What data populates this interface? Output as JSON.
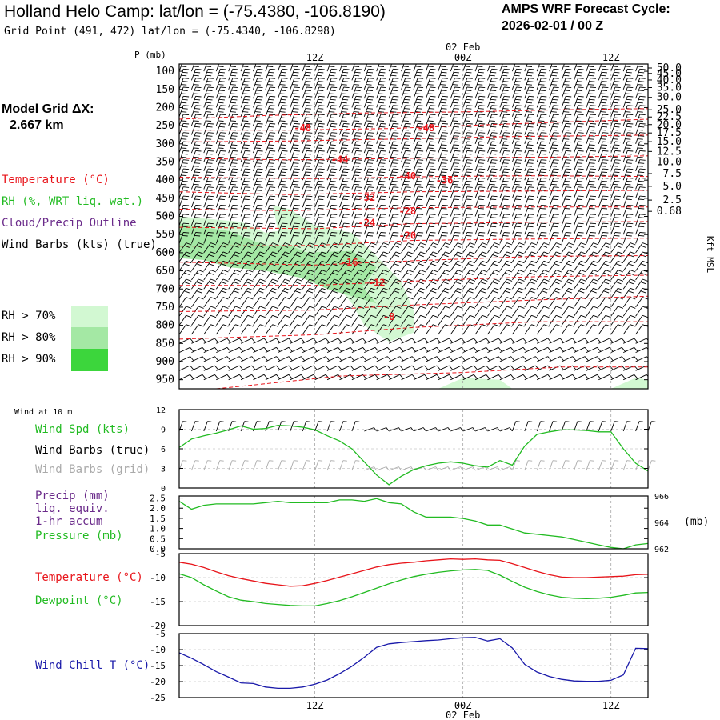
{
  "header": {
    "title": "Holland Helo Camp:  lat/lon = (-75.4380, -106.8190)",
    "subtitle": "Grid Point (491, 472) lat/lon = (-75.4340, -106.8298)",
    "cycle_line1": "AMPS WRF Forecast Cycle:",
    "cycle_line2": "2026-02-01 / 00  Z"
  },
  "model_grid": {
    "line1": "Model Grid ΔX:",
    "line2": "2.667 km"
  },
  "legend": {
    "temperature": "Temperature (°C)",
    "rh": "RH (%, WRT liq. wat.)",
    "cloud": "Cloud/Precip Outline",
    "wind": "Wind Barbs (kts) (true)",
    "rh70": "RH > 70%",
    "rh80": "RH > 80%",
    "rh90": "RH > 90%"
  },
  "colors": {
    "temperature": "#e8141a",
    "green": "#22bb22",
    "purple": "#6a2a8a",
    "blue": "#1a1aaa",
    "rh70": "#d2f8d2",
    "rh80": "#a4e8a4",
    "rh90": "#3cd63c",
    "gray": "#aaaaaa"
  },
  "chart_data": [
    {
      "type": "heatmap",
      "name": "sounding",
      "y_axis_title": "P (mb)",
      "pressure_ticks": [
        100,
        150,
        200,
        250,
        300,
        350,
        400,
        450,
        500,
        550,
        600,
        650,
        700,
        750,
        800,
        850,
        900,
        950
      ],
      "right_axis_title": "Kft MSL",
      "height_ticks": [
        "50.0",
        "45.0",
        "40.0",
        "35.0",
        "30.0",
        "25.0",
        "22.5",
        "20.0",
        "17.5",
        "15.0",
        "12.5",
        "10.0",
        "7.5",
        "5.0",
        "2.5",
        "0.68"
      ],
      "height_tick_pressures": [
        91,
        106,
        124,
        145,
        172,
        206,
        226,
        247,
        270,
        294,
        321,
        350,
        382,
        417,
        455,
        486
      ],
      "time_top_labels": [
        {
          "label": "12Z",
          "hour": 12
        },
        {
          "label": "00Z",
          "hour": 24,
          "date": "02 Feb"
        },
        {
          "label": "12Z",
          "hour": 36
        }
      ],
      "time_range_hours": [
        1,
        39
      ],
      "pressure_range": [
        80,
        975
      ],
      "temperature_labels": [
        {
          "value": "-48",
          "hour": 11.0,
          "p": 257
        },
        {
          "value": "-48",
          "hour": 21.0,
          "p": 257
        },
        {
          "value": "-44",
          "hour": 14.0,
          "p": 345
        },
        {
          "value": "-40",
          "hour": 19.5,
          "p": 390
        },
        {
          "value": "-36",
          "hour": 22.5,
          "p": 402
        },
        {
          "value": "-32",
          "hour": 16.2,
          "p": 449
        },
        {
          "value": "-28",
          "hour": 19.5,
          "p": 487
        },
        {
          "value": "-24",
          "hour": 16.2,
          "p": 519
        },
        {
          "value": "-20",
          "hour": 19.5,
          "p": 554
        },
        {
          "value": "-16",
          "hour": 14.8,
          "p": 628
        },
        {
          "value": "-12",
          "hour": 17.0,
          "p": 684
        },
        {
          "value": "-8",
          "hour": 18.0,
          "p": 778
        }
      ],
      "temperature_isotherms": [
        [
          [
            1,
            232
          ],
          [
            8,
            222
          ],
          [
            16,
            215
          ],
          [
            24,
            212
          ],
          [
            32,
            206
          ],
          [
            39,
            203
          ]
        ],
        [
          [
            1,
            262
          ],
          [
            10,
            262
          ],
          [
            18,
            258
          ],
          [
            24,
            250
          ],
          [
            32,
            240
          ],
          [
            39,
            232
          ]
        ],
        [
          [
            1,
            295
          ],
          [
            10,
            292
          ],
          [
            20,
            286
          ],
          [
            28,
            280
          ],
          [
            39,
            276
          ]
        ],
        [
          [
            1,
            340
          ],
          [
            10,
            344
          ],
          [
            20,
            340
          ],
          [
            30,
            337
          ],
          [
            39,
            333
          ]
        ],
        [
          [
            1,
            392
          ],
          [
            12,
            396
          ],
          [
            22,
            390
          ],
          [
            30,
            388
          ],
          [
            39,
            390
          ]
        ],
        [
          [
            1,
            432
          ],
          [
            10,
            440
          ],
          [
            20,
            432
          ],
          [
            30,
            430
          ],
          [
            39,
            428
          ]
        ],
        [
          [
            1,
            480
          ],
          [
            10,
            484
          ],
          [
            20,
            476
          ],
          [
            30,
            474
          ],
          [
            39,
            474
          ]
        ],
        [
          [
            1,
            530
          ],
          [
            12,
            534
          ],
          [
            20,
            520
          ],
          [
            30,
            516
          ],
          [
            39,
            514
          ]
        ],
        [
          [
            1,
            582
          ],
          [
            12,
            580
          ],
          [
            20,
            566
          ],
          [
            30,
            562
          ],
          [
            39,
            560
          ]
        ],
        [
          [
            1,
            626
          ],
          [
            12,
            634
          ],
          [
            20,
            622
          ],
          [
            30,
            610
          ],
          [
            39,
            608
          ]
        ],
        [
          [
            1,
            690
          ],
          [
            12,
            690
          ],
          [
            20,
            678
          ],
          [
            30,
            666
          ],
          [
            39,
            662
          ]
        ],
        [
          [
            1,
            762
          ],
          [
            12,
            758
          ],
          [
            20,
            744
          ],
          [
            30,
            730
          ],
          [
            39,
            720
          ]
        ],
        [
          [
            1,
            838
          ],
          [
            12,
            826
          ],
          [
            20,
            806
          ],
          [
            30,
            790
          ],
          [
            39,
            790
          ]
        ],
        [
          [
            4,
            975
          ],
          [
            14,
            940
          ],
          [
            24,
            930
          ],
          [
            32,
            915
          ],
          [
            39,
            915
          ]
        ]
      ],
      "rh70_regions": [
        [
          [
            1,
            500
          ],
          [
            6,
            515
          ],
          [
            8,
            545
          ],
          [
            9,
            540
          ],
          [
            8.6,
            470
          ],
          [
            10,
            480
          ],
          [
            12,
            525
          ],
          [
            15,
            545
          ],
          [
            17,
            610
          ],
          [
            19,
            680
          ],
          [
            20,
            760
          ],
          [
            20,
            820
          ],
          [
            18,
            845
          ],
          [
            16,
            800
          ],
          [
            15,
            740
          ],
          [
            14,
            700
          ],
          [
            12,
            660
          ],
          [
            9,
            630
          ],
          [
            6,
            640
          ],
          [
            3,
            610
          ],
          [
            1,
            600
          ]
        ],
        [
          [
            22,
            975
          ],
          [
            24,
            945
          ],
          [
            27,
            950
          ],
          [
            28,
            975
          ]
        ],
        [
          [
            36,
            975
          ],
          [
            38,
            945
          ],
          [
            39,
            950
          ],
          [
            39,
            975
          ]
        ]
      ],
      "rh80_regions": [
        [
          [
            1,
            520
          ],
          [
            5,
            540
          ],
          [
            8,
            580
          ],
          [
            10,
            580
          ],
          [
            12,
            610
          ],
          [
            15,
            640
          ],
          [
            16,
            700
          ],
          [
            17,
            740
          ],
          [
            15,
            720
          ],
          [
            13,
            700
          ],
          [
            11,
            670
          ],
          [
            8,
            650
          ],
          [
            5,
            640
          ],
          [
            3,
            620
          ],
          [
            1,
            615
          ]
        ],
        [
          [
            11,
            600
          ],
          [
            15,
            595
          ],
          [
            17,
            640
          ],
          [
            16,
            690
          ],
          [
            14,
            680
          ],
          [
            12,
            650
          ]
        ]
      ],
      "wind_barb_grid": {
        "hours_from": 1,
        "hours_to": 39,
        "step_hours": 1,
        "pressure_from": 100,
        "pressure_to": 950,
        "step_mb": 25
      }
    },
    {
      "type": "line",
      "name": "surface-wind",
      "panel_title": "Wind at 10 m",
      "legend": [
        "Wind Spd (kts)",
        "Wind Barbs (true)",
        "Wind Barbs (grid)"
      ],
      "y_ticks": [
        0,
        3,
        6,
        9,
        12
      ],
      "ylim": [
        0,
        12
      ],
      "x_hours": [
        1,
        2,
        3,
        4,
        5,
        6,
        7,
        8,
        9,
        10,
        11,
        12,
        13,
        14,
        15,
        16,
        17,
        18,
        19,
        20,
        21,
        22,
        23,
        24,
        25,
        26,
        27,
        28,
        29,
        30,
        31,
        32,
        33,
        34,
        35,
        36,
        37,
        38,
        39
      ],
      "wind_speed": [
        6.2,
        7.5,
        8.0,
        8.4,
        8.9,
        9.5,
        9.0,
        9.1,
        9.6,
        9.5,
        9.3,
        8.9,
        8.0,
        7.2,
        6.0,
        4.0,
        2.0,
        0.5,
        1.8,
        2.8,
        3.4,
        3.8,
        4.0,
        3.8,
        3.4,
        3.2,
        4.2,
        3.5,
        6.4,
        8.2,
        8.6,
        8.9,
        8.9,
        8.8,
        8.6,
        8.6,
        6.0,
        3.8,
        2.6
      ],
      "barb_y_true": 8.7,
      "barb_y_grid": 2.7
    },
    {
      "type": "line",
      "name": "pressure-precip",
      "legend": [
        "Precip (mm)",
        "liq. equiv.",
        "1-hr accum",
        "Pressure (mb)"
      ],
      "y_ticks_left": [
        "0.0",
        "0.5",
        "1.0",
        "1.5",
        "2.0",
        "2.5"
      ],
      "left_ylim": [
        0,
        2.6
      ],
      "y_ticks_right": [
        962,
        964,
        966
      ],
      "right_ylim": [
        962,
        966
      ],
      "right_unit": "(mb)",
      "x_hours": [
        1,
        2,
        3,
        4,
        5,
        6,
        7,
        8,
        9,
        10,
        11,
        12,
        13,
        14,
        15,
        16,
        17,
        18,
        19,
        20,
        21,
        22,
        23,
        24,
        25,
        26,
        27,
        28,
        29,
        30,
        31,
        32,
        33,
        34,
        35,
        36,
        37,
        38,
        39
      ],
      "pressure": [
        965.6,
        965.0,
        965.3,
        965.4,
        965.4,
        965.4,
        965.4,
        965.5,
        965.6,
        965.5,
        965.5,
        965.5,
        965.5,
        965.7,
        965.7,
        965.6,
        965.8,
        965.5,
        965.4,
        964.8,
        964.4,
        964.4,
        964.4,
        964.3,
        964.1,
        963.8,
        963.8,
        963.5,
        963.2,
        963.1,
        963.0,
        962.9,
        962.7,
        962.5,
        962.3,
        962.1,
        962.0,
        962.3,
        962.4
      ],
      "precip": []
    },
    {
      "type": "line",
      "name": "temperature-dewpoint",
      "legend": [
        "Temperature (°C)",
        "Dewpoint (°C)"
      ],
      "y_ticks": [
        -5,
        -10,
        -15,
        -20
      ],
      "ylim": [
        -20,
        -5
      ],
      "x_hours": [
        1,
        2,
        3,
        4,
        5,
        6,
        7,
        8,
        9,
        10,
        11,
        12,
        13,
        14,
        15,
        16,
        17,
        18,
        19,
        20,
        21,
        22,
        23,
        24,
        25,
        26,
        27,
        28,
        29,
        30,
        31,
        32,
        33,
        34,
        35,
        36,
        37,
        38,
        39
      ],
      "temperature": [
        -6.8,
        -7.2,
        -7.9,
        -8.8,
        -9.6,
        -10.2,
        -10.7,
        -11.2,
        -11.5,
        -11.8,
        -11.7,
        -11.2,
        -10.6,
        -9.9,
        -9.2,
        -8.5,
        -7.8,
        -7.3,
        -7.0,
        -6.8,
        -6.5,
        -6.3,
        -6.1,
        -6.2,
        -6.1,
        -6.3,
        -6.4,
        -7.1,
        -7.9,
        -8.7,
        -9.4,
        -9.9,
        -10.0,
        -10.0,
        -9.9,
        -9.8,
        -9.7,
        -9.4,
        -9.3
      ],
      "dewpoint": [
        -9.2,
        -10.0,
        -11.5,
        -12.8,
        -14.0,
        -14.7,
        -15.0,
        -15.4,
        -15.6,
        -15.8,
        -15.9,
        -15.9,
        -15.4,
        -14.8,
        -14.0,
        -13.1,
        -12.2,
        -11.3,
        -10.5,
        -9.8,
        -9.3,
        -8.9,
        -8.6,
        -8.4,
        -8.3,
        -8.5,
        -9.5,
        -10.8,
        -12.0,
        -12.9,
        -13.6,
        -14.1,
        -14.3,
        -14.4,
        -14.3,
        -14.1,
        -13.7,
        -13.2,
        -13.1
      ]
    },
    {
      "type": "line",
      "name": "wind-chill",
      "legend": [
        "Wind Chill T (°C)"
      ],
      "y_ticks": [
        -5,
        -10,
        -15,
        -20,
        -25
      ],
      "ylim": [
        -25,
        -5
      ],
      "x_hours": [
        1,
        2,
        3,
        4,
        5,
        6,
        7,
        8,
        9,
        10,
        11,
        12,
        13,
        14,
        15,
        16,
        17,
        18,
        19,
        20,
        21,
        22,
        23,
        24,
        25,
        26,
        27,
        28,
        29,
        30,
        31,
        32,
        33,
        34,
        35,
        36,
        37,
        38,
        39
      ],
      "wind_chill": [
        -11.0,
        -12.7,
        -14.7,
        -16.9,
        -18.6,
        -20.4,
        -20.6,
        -21.7,
        -22.1,
        -22.1,
        -21.7,
        -20.8,
        -19.5,
        -17.5,
        -15.2,
        -12.4,
        -9.3,
        -8.2,
        -7.8,
        -7.5,
        -7.2,
        -7.0,
        -6.6,
        -6.3,
        -6.2,
        -7.3,
        -6.6,
        -9.5,
        -14.6,
        -17.0,
        -18.4,
        -19.3,
        -19.8,
        -19.9,
        -19.9,
        -19.6,
        -17.9,
        -9.6,
        -9.7
      ],
      "x_bottom_labels": [
        {
          "label": "12Z",
          "hour": 12
        },
        {
          "label": "00Z",
          "hour": 24,
          "date": "02 Feb"
        },
        {
          "label": "12Z",
          "hour": 36
        }
      ]
    }
  ]
}
